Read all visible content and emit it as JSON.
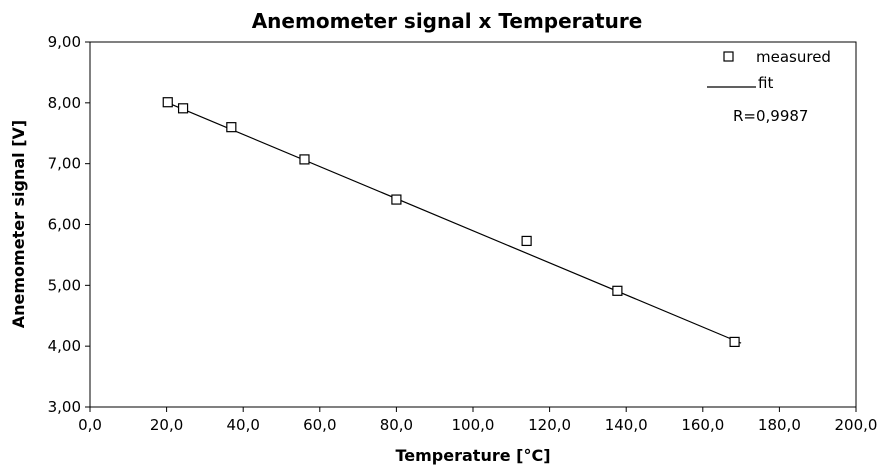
{
  "chart_data": {
    "type": "scatter",
    "title": "Anemometer signal x Temperature",
    "xlabel": "Temperature [°C]",
    "ylabel": "Anemometer signal [V]",
    "xlim": [
      0,
      200
    ],
    "ylim": [
      3,
      9
    ],
    "x_ticks": [
      0,
      20,
      40,
      60,
      80,
      100,
      120,
      140,
      160,
      180,
      200
    ],
    "y_ticks": [
      3,
      4,
      5,
      6,
      7,
      8,
      9
    ],
    "x_tick_labels": [
      "0,0",
      "20,0",
      "40,0",
      "60,0",
      "80,0",
      "100,0",
      "120,0",
      "140,0",
      "160,0",
      "180,0",
      "200,0"
    ],
    "y_tick_labels": [
      "3,00",
      "4,00",
      "5,00",
      "6,00",
      "7,00",
      "8,00",
      "9,00"
    ],
    "grid": false,
    "legend_position": "top-right",
    "series": [
      {
        "name": "measured",
        "marker": "square-open",
        "color": "#000000",
        "points": [
          {
            "x": 20.3,
            "y": 8.01
          },
          {
            "x": 24.3,
            "y": 7.91
          },
          {
            "x": 36.9,
            "y": 7.6
          },
          {
            "x": 56.0,
            "y": 7.07
          },
          {
            "x": 80.0,
            "y": 6.41
          },
          {
            "x": 114.0,
            "y": 5.73
          },
          {
            "x": 137.7,
            "y": 4.91
          },
          {
            "x": 168.3,
            "y": 4.07
          }
        ]
      },
      {
        "name": "fit",
        "style": "line",
        "color": "#000000",
        "points": [
          {
            "x": 20.3,
            "y": 8.0
          },
          {
            "x": 170.0,
            "y": 4.05
          }
        ]
      }
    ],
    "annotations": [
      "R=0,9987"
    ]
  }
}
